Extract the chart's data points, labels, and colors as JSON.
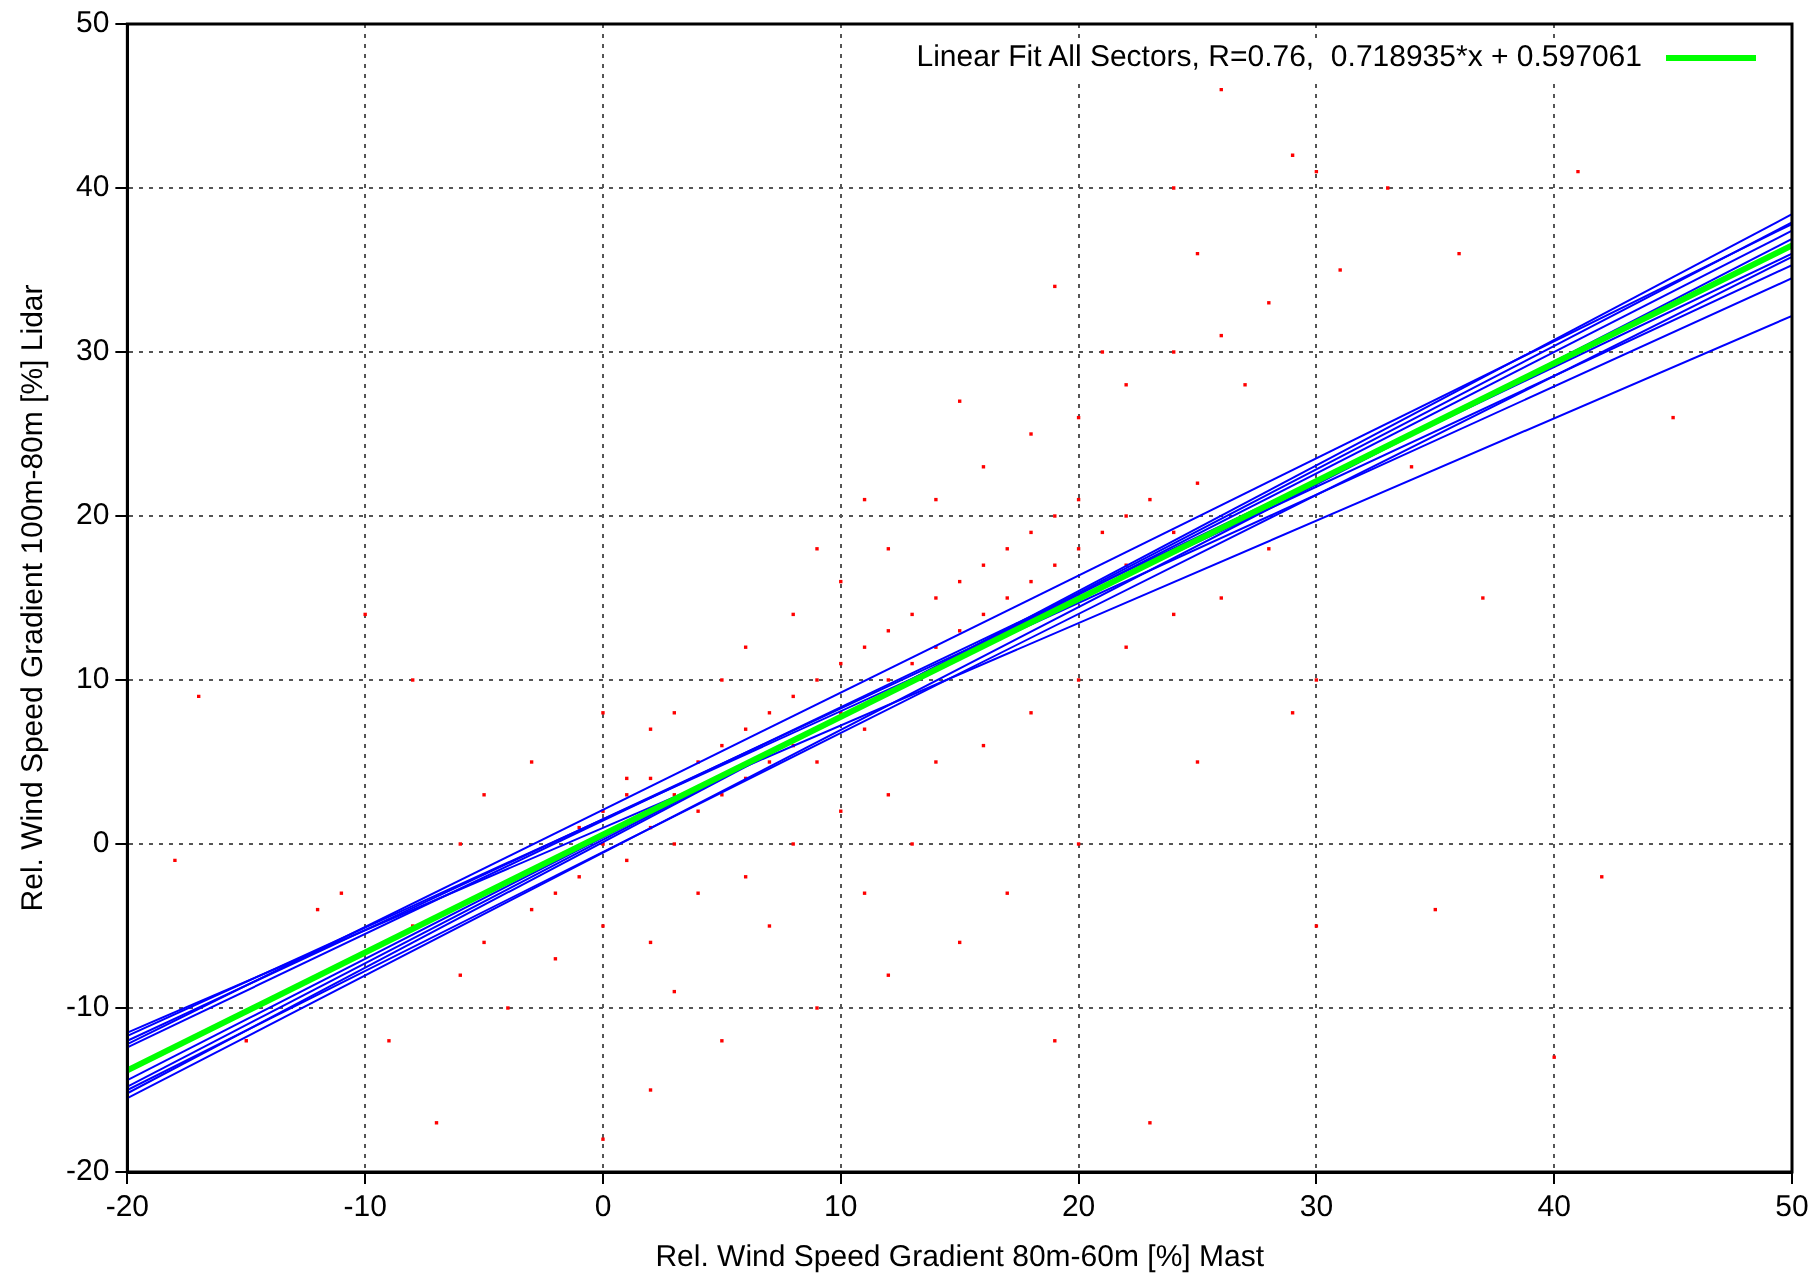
{
  "chart_data": {
    "type": "scatter",
    "xlabel": "Rel. Wind Speed Gradient 80m-60m [%] Mast",
    "ylabel": "Rel. Wind Speed Gradient 100m-80m [%] Lidar",
    "xlim": [
      -20,
      50
    ],
    "xticks": [
      -20,
      -10,
      0,
      10,
      20,
      30,
      40,
      50
    ],
    "ylim": [
      -20,
      50
    ],
    "yticks": [
      -20,
      -10,
      0,
      10,
      20,
      30,
      40,
      50
    ],
    "grid": true,
    "legend": "top right",
    "series": [
      {
        "color": "#ff0000",
        "marker": "square",
        "x": [
          -2,
          -1,
          0,
          0,
          1,
          1,
          2,
          2,
          3,
          3,
          4,
          4,
          5,
          5,
          6,
          6,
          7,
          7,
          8,
          8,
          9,
          9,
          10,
          10,
          11,
          11,
          12,
          12,
          13,
          13,
          14,
          14,
          15,
          15,
          16,
          16,
          17,
          17,
          18,
          18,
          19,
          19,
          20,
          20,
          21,
          22,
          22,
          23,
          24,
          25,
          3,
          5,
          8,
          10,
          12,
          14,
          16,
          18,
          20,
          22,
          24,
          26,
          28,
          27,
          6,
          2,
          -3,
          -5,
          0,
          -8,
          -17,
          -10,
          11,
          9,
          15,
          19,
          25,
          29,
          26,
          30,
          31,
          33,
          24,
          21,
          -5,
          -3,
          0,
          2,
          4,
          6,
          8,
          10,
          12,
          14,
          16,
          18,
          20,
          22,
          24,
          26,
          28,
          30,
          29,
          25,
          20,
          17,
          15,
          12,
          9,
          5,
          2,
          0,
          19,
          23,
          30,
          35,
          40,
          42,
          37,
          34,
          36,
          45,
          41,
          -9,
          -12,
          -15,
          -18,
          -7,
          -11,
          -6,
          -4,
          -2,
          3,
          7,
          11,
          13,
          -1,
          1,
          -6,
          -8
        ],
        "values": [
          -3,
          1,
          0,
          2,
          -1,
          3,
          1,
          4,
          0,
          3,
          2,
          5,
          3,
          6,
          4,
          7,
          5,
          8,
          6,
          9,
          5,
          10,
          8,
          11,
          7,
          12,
          10,
          13,
          11,
          14,
          12,
          15,
          13,
          16,
          14,
          17,
          15,
          18,
          16,
          19,
          17,
          20,
          18,
          21,
          19,
          20,
          17,
          21,
          19,
          22,
          8,
          10,
          14,
          16,
          18,
          21,
          23,
          25,
          26,
          28,
          30,
          31,
          33,
          28,
          12,
          7,
          5,
          3,
          8,
          10,
          9,
          14,
          21,
          18,
          27,
          34,
          36,
          42,
          46,
          41,
          35,
          40,
          40,
          30,
          -6,
          -4,
          -5,
          -6,
          -3,
          -2,
          0,
          2,
          3,
          5,
          6,
          8,
          10,
          12,
          14,
          15,
          18,
          10,
          8,
          5,
          0,
          -3,
          -6,
          -8,
          -10,
          -12,
          -15,
          -18,
          -12,
          -17,
          -5,
          -4,
          -13,
          -2,
          15,
          23,
          36,
          26,
          41,
          -12,
          -4,
          -12,
          -1,
          -17,
          -3,
          -8,
          -10,
          -7,
          -9,
          -5,
          -3,
          0,
          -2,
          4,
          0,
          -5
        ]
      },
      {
        "type": "line",
        "color": "#0000ff",
        "x": [
          -20,
          50
        ],
        "values": [
          -15.2,
          38.4
        ]
      },
      {
        "type": "line",
        "color": "#0000ff",
        "x": [
          -20,
          50
        ],
        "values": [
          -14.8,
          37.9
        ]
      },
      {
        "type": "line",
        "color": "#0000ff",
        "x": [
          -20,
          50
        ],
        "values": [
          -14.4,
          37.4
        ]
      },
      {
        "type": "line",
        "color": "#0000ff",
        "x": [
          -20,
          50
        ],
        "values": [
          -15.5,
          36.9
        ]
      },
      {
        "type": "line",
        "color": "#0000ff",
        "x": [
          -20,
          50
        ],
        "values": [
          -12.4,
          36.0
        ]
      },
      {
        "type": "line",
        "color": "#0000ff",
        "x": [
          -20,
          50
        ],
        "values": [
          -12.0,
          35.3
        ]
      },
      {
        "type": "line",
        "color": "#0000ff",
        "x": [
          -20,
          50
        ],
        "values": [
          -11.7,
          34.5
        ]
      },
      {
        "type": "line",
        "color": "#0000ff",
        "x": [
          -20,
          50
        ],
        "values": [
          -11.5,
          32.2
        ]
      },
      {
        "type": "line",
        "color": "#0000ff",
        "x": [
          -20,
          50
        ],
        "values": [
          -15.0,
          35.8
        ]
      },
      {
        "type": "line",
        "color": "#0000ff",
        "x": [
          -20,
          50
        ],
        "values": [
          -12.2,
          37.8
        ]
      },
      {
        "type": "line",
        "name": "Linear Fit All Sectors, R=0.76,  0.718935*x + 0.597061",
        "color": "#00ff00",
        "x": [
          -20,
          50
        ],
        "values": [
          -13.8,
          36.5
        ]
      }
    ]
  }
}
